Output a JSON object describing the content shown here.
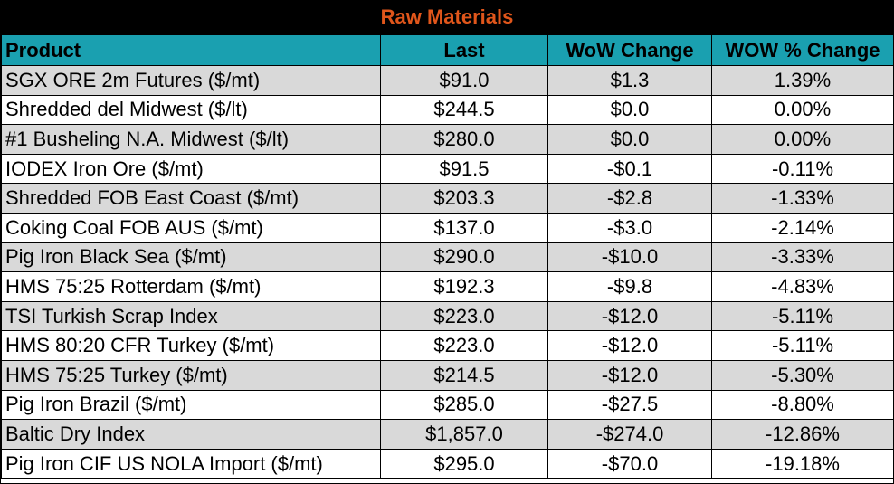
{
  "chart_data": {
    "type": "table",
    "title": "Raw Materials",
    "columns": [
      "Product",
      "Last",
      "WoW Change",
      "WOW % Change"
    ],
    "rows": [
      [
        "SGX ORE 2m Futures ($/mt)",
        "$91.0",
        "$1.3",
        "1.39%"
      ],
      [
        "Shredded del  Midwest ($/lt)",
        "$244.5",
        "$0.0",
        "0.00%"
      ],
      [
        "#1 Busheling N.A. Midwest ($/lt)",
        "$280.0",
        "$0.0",
        "0.00%"
      ],
      [
        "IODEX  Iron Ore ($/mt)",
        "$91.5",
        "-$0.1",
        "-0.11%"
      ],
      [
        "Shredded FOB East Coast ($/mt)",
        "$203.3",
        "-$2.8",
        "-1.33%"
      ],
      [
        "Coking Coal FOB AUS ($/mt)",
        "$137.0",
        "-$3.0",
        "-2.14%"
      ],
      [
        "Pig Iron Black Sea ($/mt)",
        "$290.0",
        "-$10.0",
        "-3.33%"
      ],
      [
        "HMS 75:25 Rotterdam ($/mt)",
        "$192.3",
        "-$9.8",
        "-4.83%"
      ],
      [
        "TSI Turkish Scrap Index",
        "$223.0",
        "-$12.0",
        "-5.11%"
      ],
      [
        "HMS 80:20 CFR Turkey ($/mt)",
        "$223.0",
        "-$12.0",
        "-5.11%"
      ],
      [
        "HMS 75:25 Turkey ($/mt)",
        "$214.5",
        "-$12.0",
        "-5.30%"
      ],
      [
        "Pig Iron Brazil ($/mt)",
        "$285.0",
        "-$27.5",
        "-8.80%"
      ],
      [
        "Baltic Dry Index",
        "$1,857.0",
        "-$274.0",
        "-12.86%"
      ],
      [
        "Pig Iron CIF US NOLA Import ($/mt)",
        "$295.0",
        "-$70.0",
        "-19.18%"
      ]
    ]
  },
  "colors": {
    "title_bg": "#000000",
    "title_text": "#e0561b",
    "header_bg": "#1aa0b0",
    "row_shade": "#d9d9d9"
  }
}
